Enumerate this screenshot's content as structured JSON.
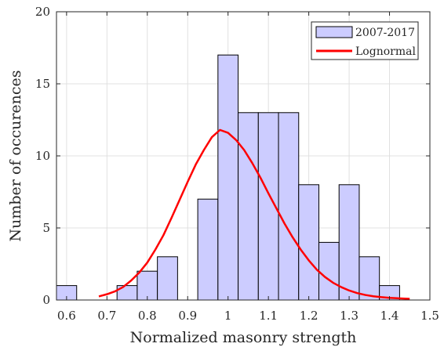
{
  "chart_data": {
    "type": "bar",
    "xlabel": "Normalized masonry strength",
    "ylabel": "Number of occurences",
    "xlim": [
      0.575,
      1.5
    ],
    "ylim": [
      0,
      20
    ],
    "xticks": [
      0.6,
      0.7,
      0.8,
      0.9,
      1,
      1.1,
      1.2,
      1.3,
      1.4,
      1.5
    ],
    "yticks": [
      0,
      5,
      10,
      15,
      20
    ],
    "grid": true,
    "legend_position": "top-right",
    "bin_width": 0.05,
    "series": [
      {
        "name": "2007-2017",
        "kind": "histogram",
        "color": "#ccccff",
        "edge_color": "#000000",
        "bin_centers": [
          0.6,
          0.65,
          0.7,
          0.75,
          0.8,
          0.85,
          0.9,
          0.95,
          1.0,
          1.05,
          1.1,
          1.15,
          1.2,
          1.25,
          1.3,
          1.35,
          1.4
        ],
        "values": [
          1,
          0,
          0,
          1,
          2,
          3,
          0,
          7,
          17,
          13,
          13,
          13,
          8,
          4,
          8,
          3,
          1
        ]
      },
      {
        "name": "Lognormal",
        "kind": "line",
        "color": "#ff0000",
        "x": [
          0.68,
          0.7,
          0.72,
          0.74,
          0.76,
          0.78,
          0.8,
          0.82,
          0.84,
          0.86,
          0.88,
          0.9,
          0.92,
          0.94,
          0.96,
          0.98,
          1.0,
          1.02,
          1.04,
          1.06,
          1.08,
          1.1,
          1.12,
          1.14,
          1.16,
          1.18,
          1.2,
          1.22,
          1.24,
          1.26,
          1.28,
          1.3,
          1.32,
          1.34,
          1.36,
          1.38,
          1.4,
          1.42,
          1.45
        ],
        "y": [
          0.25,
          0.4,
          0.6,
          0.9,
          1.35,
          1.9,
          2.6,
          3.5,
          4.5,
          5.7,
          6.95,
          8.2,
          9.4,
          10.4,
          11.3,
          11.8,
          11.6,
          11.1,
          10.4,
          9.5,
          8.5,
          7.4,
          6.35,
          5.3,
          4.35,
          3.5,
          2.75,
          2.1,
          1.6,
          1.2,
          0.9,
          0.66,
          0.48,
          0.35,
          0.26,
          0.2,
          0.15,
          0.12,
          0.08
        ]
      }
    ]
  },
  "colors": {
    "grid": "#e0e0e0",
    "axes": "#262626"
  }
}
